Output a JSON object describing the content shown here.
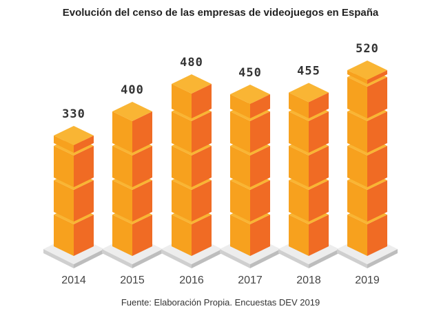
{
  "chart_data": {
    "type": "bar",
    "title": "Evolución del censo de las empresas de videojuegos en España",
    "categories": [
      "2014",
      "2015",
      "2016",
      "2017",
      "2018",
      "2019"
    ],
    "values": [
      330,
      400,
      480,
      450,
      455,
      520
    ],
    "value_labels": [
      "330",
      "400",
      "480",
      "450",
      "455",
      "520"
    ],
    "source": "Fuente: Elaboración Propia. Encuestas DEV 2019",
    "xlabel": "",
    "ylabel": "",
    "ylim": [
      0,
      520
    ],
    "grid": false,
    "colors": {
      "top": "#F9B534",
      "left": "#F7A11E",
      "right": "#F06B24",
      "base_top": "#EDEDED",
      "base_side": "#CFCFCF"
    }
  }
}
